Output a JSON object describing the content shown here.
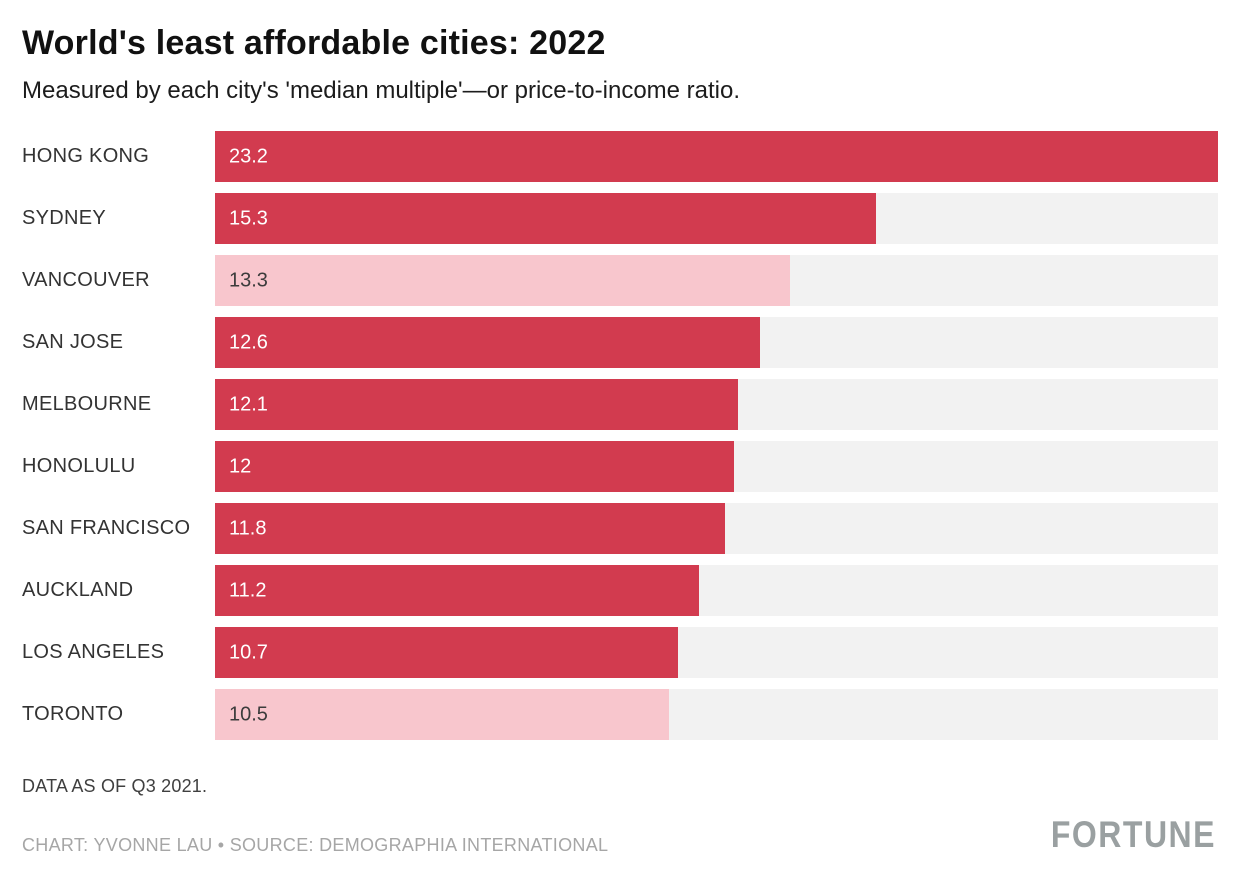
{
  "header": {
    "title": "World's least affordable cities: 2022",
    "subtitle": "Measured by each city's 'median multiple'—or price-to-income ratio."
  },
  "footer": {
    "note": "DATA AS OF Q3 2021.",
    "credit": "CHART: YVONNE LAU • SOURCE: DEMOGRAPHIA INTERNATIONAL",
    "logo": "FORTUNE"
  },
  "chart_data": {
    "type": "bar",
    "orientation": "horizontal",
    "title": "World's least affordable cities: 2022",
    "subtitle": "Measured by each city's 'median multiple'—or price-to-income ratio.",
    "xlabel": "",
    "ylabel": "",
    "xlim": [
      0,
      23.2
    ],
    "grid": false,
    "legend": false,
    "categories": [
      "HONG KONG",
      "SYDNEY",
      "VANCOUVER",
      "SAN JOSE",
      "MELBOURNE",
      "HONOLULU",
      "SAN FRANCISCO",
      "AUCKLAND",
      "LOS ANGELES",
      "TORONTO"
    ],
    "values": [
      23.2,
      15.3,
      13.3,
      12.6,
      12.1,
      12,
      11.8,
      11.2,
      10.7,
      10.5
    ],
    "value_labels": [
      "23.2",
      "15.3",
      "13.3",
      "12.6",
      "12.1",
      "12",
      "11.8",
      "11.2",
      "10.7",
      "10.5"
    ],
    "bar_color_keys": [
      "primary",
      "primary",
      "highlight",
      "primary",
      "primary",
      "primary",
      "primary",
      "primary",
      "primary",
      "highlight"
    ],
    "colors": {
      "primary": "#d23b4f",
      "highlight": "#f8c6cd",
      "track": "#f2f2f2",
      "value_on_primary": "#ffffff",
      "value_on_highlight": "#3c3c3c"
    }
  }
}
